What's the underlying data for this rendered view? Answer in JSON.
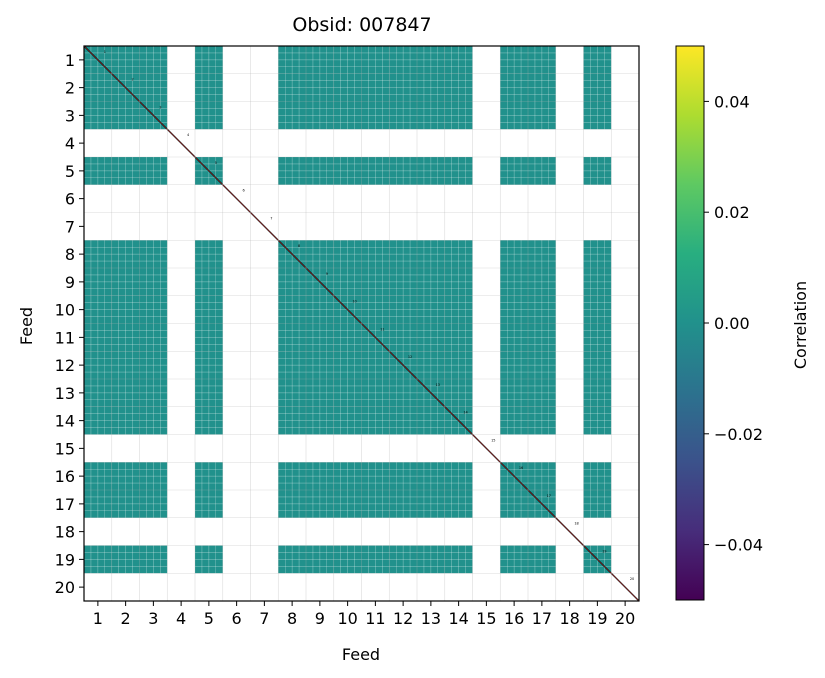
{
  "chart_data": {
    "type": "heatmap",
    "title": "Obsid: 007847",
    "xlabel": "Feed",
    "ylabel": "Feed",
    "feeds": [
      "1",
      "2",
      "3",
      "4",
      "5",
      "6",
      "7",
      "8",
      "9",
      "10",
      "11",
      "12",
      "13",
      "14",
      "15",
      "16",
      "17",
      "18",
      "19",
      "20"
    ],
    "value_note": "Correlation values are approximately 0 for all valid cells; excluded feeds (4, 6, 7, 15, 18) and feed 20 are blank/white.",
    "approx_cell_value": 0.0,
    "active_feeds": [
      1,
      2,
      3,
      5,
      8,
      9,
      10,
      11,
      12,
      13,
      14,
      16,
      17,
      19
    ],
    "colorbar": {
      "label": "Correlation",
      "vmin": -0.05,
      "vmax": 0.05,
      "ticks": [
        -0.04,
        -0.02,
        0.0,
        0.02,
        0.04
      ],
      "tick_labels": [
        "−0.04",
        "−0.02",
        "0.00",
        "0.02",
        "0.04"
      ],
      "colormap": "viridis"
    },
    "cell_color": "#21918c",
    "blank_color": "#ffffff",
    "grid": true,
    "diagonal_labels": [
      "1",
      "2",
      "3",
      "4",
      "5",
      "6",
      "7",
      "8",
      "9",
      "10",
      "11",
      "12",
      "13",
      "14",
      "15",
      "16",
      "17",
      "18",
      "19",
      "20"
    ]
  }
}
